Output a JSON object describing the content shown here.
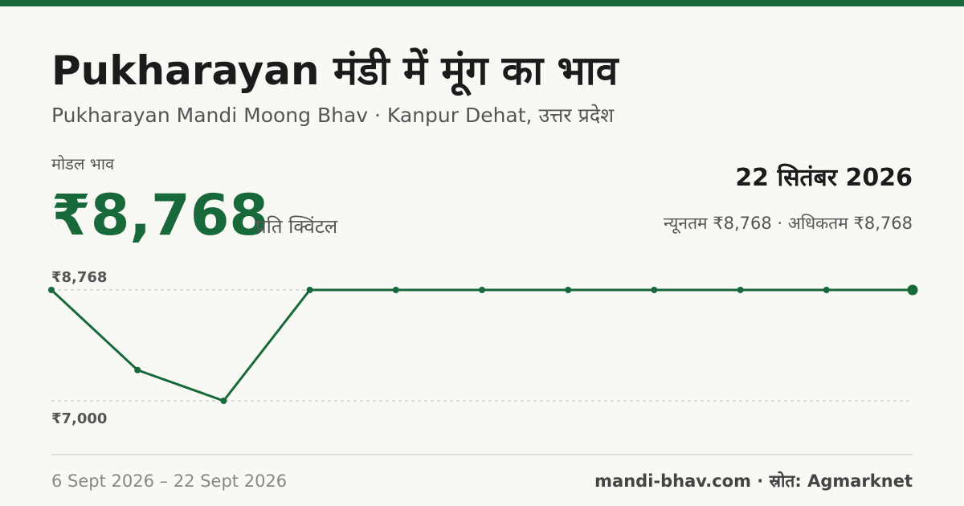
{
  "header": {
    "title": "Pukharayan मंडी में मूंग का भाव",
    "subtitle": "Pukharayan Mandi Moong Bhav · Kanpur Dehat, उत्तर प्रदेश"
  },
  "price": {
    "label": "मोडल भाव",
    "value": "₹8,768",
    "unit": "प्रति क्विंटल",
    "date": "22 सितंबर 2026",
    "range": "न्यूनतम ₹8,768 · अधिकतम ₹8,768"
  },
  "chart_data": {
    "type": "line",
    "categories": [
      null,
      null,
      null,
      null,
      null,
      null,
      null,
      null,
      null,
      null,
      null
    ],
    "series": [
      {
        "color": "#17693a",
        "values": [
          8768,
          7490,
          7000,
          8768,
          8768,
          8768,
          8768,
          8768,
          8768,
          8768,
          8768
        ]
      }
    ],
    "ylim": [
      7000,
      8768
    ],
    "yticks": [
      {
        "value": 8768,
        "label": "₹8,768"
      },
      {
        "value": 7000,
        "label": "₹7,000"
      }
    ],
    "grid": true
  },
  "footer": {
    "period": "6 Sept 2026 – 22 Sept 2026",
    "source": "mandi-bhav.com · स्रोत: Agmarknet"
  }
}
